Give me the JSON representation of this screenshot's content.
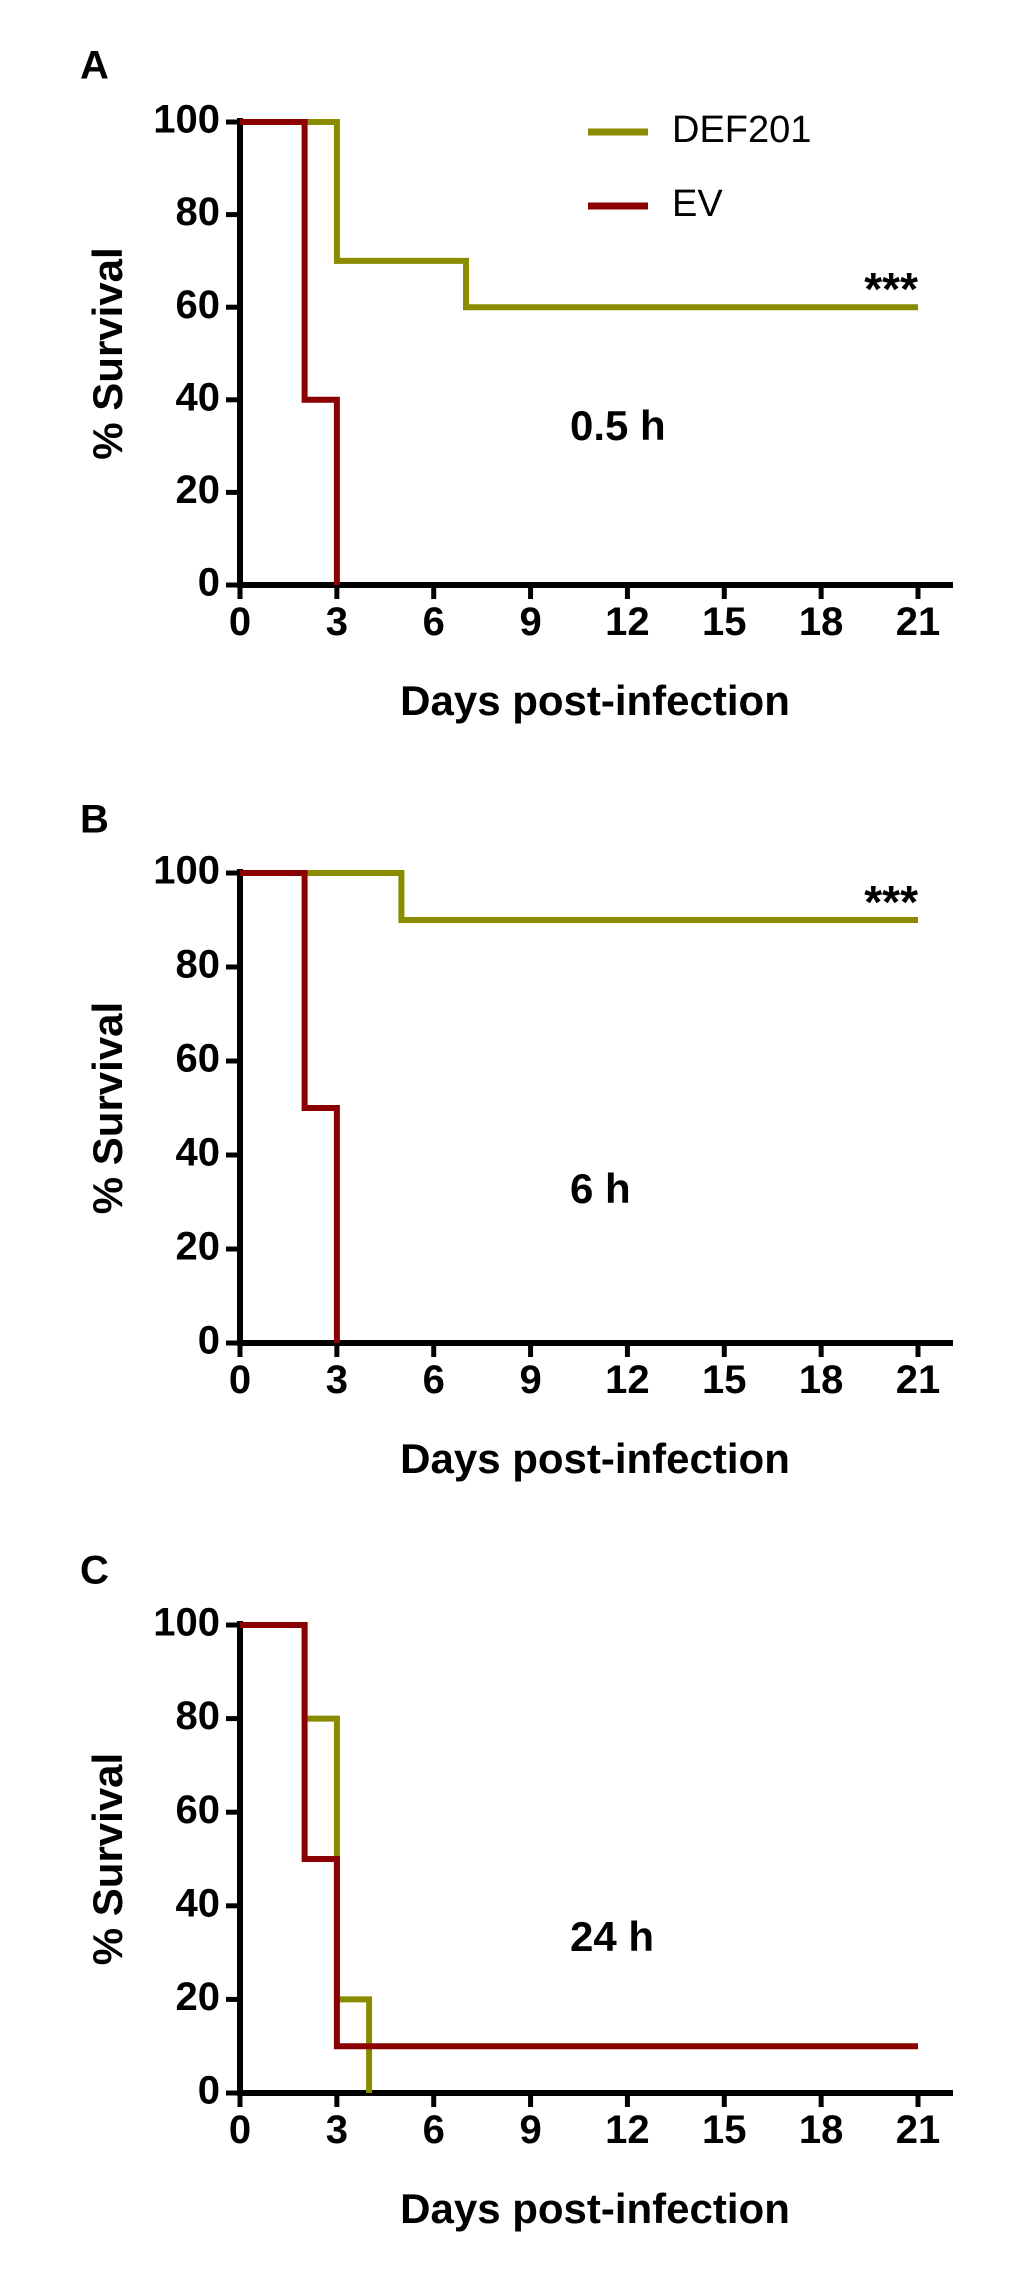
{
  "chart_data": [
    {
      "type": "line",
      "panel": "A",
      "condition_label": "0.5 h",
      "significance": "***",
      "xlabel": "Days post-infection",
      "ylabel": "% Survival",
      "xlim": [
        0,
        21
      ],
      "ylim": [
        0,
        100
      ],
      "xticks": [
        "0",
        "3",
        "6",
        "9",
        "12",
        "15",
        "18",
        "21"
      ],
      "yticks": [
        "0",
        "20",
        "40",
        "60",
        "80",
        "100"
      ],
      "legend": true,
      "series": [
        {
          "name": "DEF201",
          "color": "#8b8b00",
          "points": [
            [
              0,
              100
            ],
            [
              3,
              100
            ],
            [
              3,
              70
            ],
            [
              7,
              70
            ],
            [
              7,
              60
            ],
            [
              21,
              60
            ]
          ]
        },
        {
          "name": "EV",
          "color": "#8b0000",
          "points": [
            [
              0,
              100
            ],
            [
              2,
              100
            ],
            [
              2,
              40
            ],
            [
              3,
              40
            ],
            [
              3,
              0
            ]
          ]
        }
      ]
    },
    {
      "type": "line",
      "panel": "B",
      "condition_label": "6 h",
      "significance": "***",
      "xlabel": "Days post-infection",
      "ylabel": "% Survival",
      "xlim": [
        0,
        21
      ],
      "ylim": [
        0,
        100
      ],
      "xticks": [
        "0",
        "3",
        "6",
        "9",
        "12",
        "15",
        "18",
        "21"
      ],
      "yticks": [
        "0",
        "20",
        "40",
        "60",
        "80",
        "100"
      ],
      "legend": false,
      "series": [
        {
          "name": "DEF201",
          "color": "#8b8b00",
          "points": [
            [
              0,
              100
            ],
            [
              5,
              100
            ],
            [
              5,
              90
            ],
            [
              21,
              90
            ]
          ]
        },
        {
          "name": "EV",
          "color": "#8b0000",
          "points": [
            [
              0,
              100
            ],
            [
              2,
              100
            ],
            [
              2,
              50
            ],
            [
              3,
              50
            ],
            [
              3,
              0
            ]
          ]
        }
      ]
    },
    {
      "type": "line",
      "panel": "C",
      "condition_label": "24 h",
      "significance": "",
      "xlabel": "Days post-infection",
      "ylabel": "% Survival",
      "xlim": [
        0,
        21
      ],
      "ylim": [
        0,
        100
      ],
      "xticks": [
        "0",
        "3",
        "6",
        "9",
        "12",
        "15",
        "18",
        "21"
      ],
      "yticks": [
        "0",
        "20",
        "40",
        "60",
        "80",
        "100"
      ],
      "legend": false,
      "series": [
        {
          "name": "DEF201",
          "color": "#8b8b00",
          "points": [
            [
              0,
              100
            ],
            [
              2,
              100
            ],
            [
              2,
              80
            ],
            [
              3,
              80
            ],
            [
              3,
              20
            ],
            [
              4,
              20
            ],
            [
              4,
              0
            ]
          ]
        },
        {
          "name": "EV",
          "color": "#8b0000",
          "points": [
            [
              0,
              100
            ],
            [
              2,
              100
            ],
            [
              2,
              50
            ],
            [
              3,
              50
            ],
            [
              3,
              10
            ],
            [
              21,
              10
            ]
          ]
        }
      ]
    }
  ]
}
